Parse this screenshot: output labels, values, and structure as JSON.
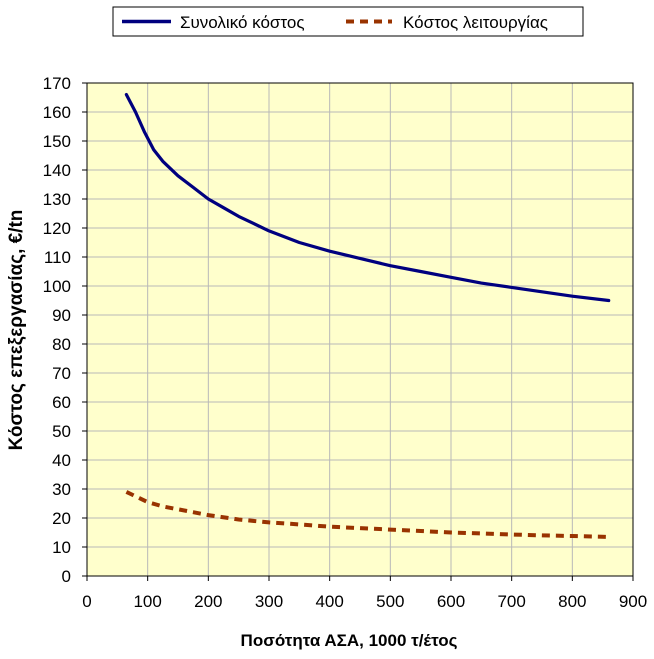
{
  "chart_data": {
    "type": "line",
    "title": "",
    "xlabel": "Ποσότητα ΑΣΑ, 1000 τ/έτος",
    "ylabel": "Κόστος επεξεργασίας, €/tn",
    "xlim": [
      0,
      900
    ],
    "ylim": [
      0,
      170
    ],
    "xticks": [
      "0",
      "100",
      "200",
      "300",
      "400",
      "500",
      "600",
      "700",
      "800",
      "900"
    ],
    "yticks": [
      "0",
      "10",
      "20",
      "30",
      "40",
      "50",
      "60",
      "70",
      "80",
      "90",
      "100",
      "110",
      "120",
      "130",
      "140",
      "150",
      "160",
      "170"
    ],
    "grid": true,
    "legend_position": "top",
    "plot_background": "#FFFFCC",
    "grid_color": "#B8B8B8",
    "series": [
      {
        "name": "Συνολικό κόστος",
        "color": "#00007F",
        "style": "solid",
        "x": [
          65,
          80,
          95,
          110,
          125,
          150,
          175,
          200,
          225,
          250,
          275,
          300,
          350,
          400,
          450,
          500,
          550,
          600,
          650,
          700,
          750,
          800,
          860
        ],
        "y": [
          166,
          160,
          153,
          147,
          143,
          138,
          134,
          130,
          127,
          124,
          121.5,
          119,
          115,
          112,
          109.5,
          107,
          105,
          103,
          101,
          99.5,
          98,
          96.5,
          95
        ]
      },
      {
        "name": "Κόστος λειτουργίας",
        "color": "#993300",
        "style": "dashed",
        "x": [
          65,
          80,
          100,
          125,
          150,
          175,
          200,
          250,
          300,
          350,
          400,
          450,
          500,
          550,
          600,
          650,
          700,
          750,
          800,
          860
        ],
        "y": [
          29,
          27.5,
          25.5,
          24,
          23,
          22,
          21,
          19.5,
          18.5,
          17.8,
          17,
          16.5,
          16,
          15.5,
          15,
          14.7,
          14.3,
          14,
          13.8,
          13.5
        ]
      }
    ]
  }
}
